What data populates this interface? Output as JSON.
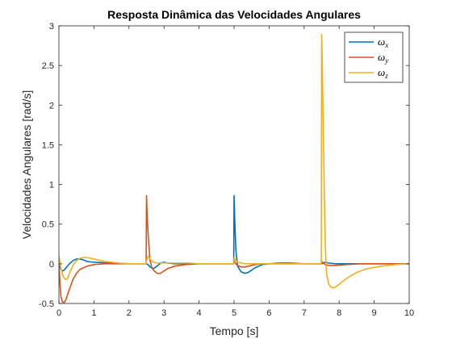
{
  "chart_data": {
    "type": "line",
    "title": "Resposta Dinâmica das Velocidades Angulares",
    "xlabel": "Tempo [s]",
    "ylabel": "Velocidades Angulares [rad/s]",
    "xlim": [
      0,
      10
    ],
    "ylim": [
      -0.5,
      3
    ],
    "xticks": [
      0,
      1,
      2,
      3,
      4,
      5,
      6,
      7,
      8,
      9,
      10
    ],
    "xtick_labels": [
      "0",
      "1",
      "2",
      "3",
      "4",
      "5",
      "6",
      "7",
      "8",
      "9",
      "10"
    ],
    "yticks": [
      -0.5,
      0,
      0.5,
      1,
      1.5,
      2,
      2.5,
      3
    ],
    "ytick_labels": [
      "-0.5",
      "0",
      "0.5",
      "1",
      "1.5",
      "2",
      "2.5",
      "3"
    ],
    "grid": false,
    "legend_position": "top-right",
    "series": [
      {
        "name": "ω",
        "subscript": "x",
        "color": "#0072BD",
        "x": [
          0,
          0.05,
          0.1,
          0.15,
          0.2,
          0.3,
          0.4,
          0.5,
          0.6,
          0.7,
          0.8,
          1.0,
          1.5,
          2.0,
          2.49,
          2.5,
          2.55,
          2.6,
          2.7,
          2.8,
          2.9,
          3.0,
          3.1,
          3.3,
          3.6,
          4.0,
          4.99,
          5.0,
          5.02,
          5.05,
          5.1,
          5.2,
          5.3,
          5.4,
          5.5,
          5.6,
          5.7,
          5.8,
          6.0,
          6.3,
          6.6,
          7.0,
          7.49,
          7.5,
          7.55,
          7.6,
          7.7,
          7.9,
          8.2,
          8.6,
          9.0,
          10.0
        ],
        "y": [
          0.0,
          -0.06,
          -0.09,
          -0.08,
          -0.05,
          0.0,
          0.04,
          0.06,
          0.06,
          0.05,
          0.03,
          0.02,
          0.01,
          0.0,
          0.0,
          0.0,
          -0.01,
          -0.04,
          -0.06,
          -0.03,
          0.01,
          0.02,
          0.01,
          0.0,
          0.0,
          0.0,
          0.0,
          0.86,
          0.55,
          0.18,
          -0.03,
          -0.1,
          -0.12,
          -0.11,
          -0.08,
          -0.05,
          -0.03,
          -0.01,
          0.0,
          0.01,
          0.01,
          0.0,
          0.0,
          0.0,
          0.01,
          0.02,
          0.01,
          0.0,
          0.0,
          0.0,
          0.0,
          0.0
        ]
      },
      {
        "name": "ω",
        "subscript": "y",
        "color": "#D95319",
        "x": [
          0,
          0.03,
          0.06,
          0.1,
          0.15,
          0.2,
          0.3,
          0.4,
          0.5,
          0.6,
          0.8,
          1.0,
          1.3,
          1.6,
          2.0,
          2.49,
          2.5,
          2.52,
          2.55,
          2.6,
          2.65,
          2.7,
          2.8,
          2.9,
          3.0,
          3.1,
          3.3,
          3.6,
          4.0,
          4.99,
          5.0,
          5.05,
          5.1,
          5.2,
          5.3,
          5.4,
          5.6,
          5.8,
          6.1,
          6.5,
          7.0,
          7.49,
          7.5,
          7.55,
          7.6,
          7.7,
          7.9,
          8.2,
          8.6,
          9.0,
          10.0
        ],
        "y": [
          0.0,
          -0.25,
          -0.42,
          -0.48,
          -0.49,
          -0.45,
          -0.32,
          -0.2,
          -0.12,
          -0.07,
          -0.03,
          -0.01,
          0.0,
          0.0,
          0.0,
          0.0,
          0.86,
          0.6,
          0.35,
          0.05,
          -0.05,
          -0.08,
          -0.12,
          -0.12,
          -0.09,
          -0.06,
          -0.03,
          -0.01,
          0.0,
          0.0,
          0.04,
          0.0,
          -0.02,
          -0.04,
          -0.04,
          -0.03,
          -0.01,
          0.0,
          0.0,
          0.0,
          0.0,
          0.0,
          0.03,
          0.01,
          -0.01,
          -0.02,
          -0.02,
          -0.01,
          0.0,
          0.0,
          0.0
        ]
      },
      {
        "name": "ω",
        "subscript": "z",
        "color": "#EDB120",
        "x": [
          0,
          0.05,
          0.1,
          0.15,
          0.2,
          0.25,
          0.3,
          0.4,
          0.5,
          0.6,
          0.7,
          0.8,
          1.0,
          1.3,
          1.7,
          2.0,
          2.49,
          2.5,
          2.55,
          2.6,
          2.7,
          2.8,
          3.0,
          3.3,
          3.7,
          4.0,
          4.99,
          5.0,
          5.05,
          5.1,
          5.2,
          5.3,
          5.5,
          5.7,
          6.0,
          6.5,
          7.0,
          7.49,
          7.5,
          7.52,
          7.55,
          7.58,
          7.6,
          7.63,
          7.65,
          7.7,
          7.75,
          7.8,
          7.85,
          7.9,
          8.0,
          8.1,
          8.3,
          8.5,
          8.8,
          9.2,
          9.6,
          10.0
        ],
        "y": [
          0.1,
          -0.04,
          -0.13,
          -0.18,
          -0.2,
          -0.18,
          -0.12,
          -0.02,
          0.04,
          0.07,
          0.08,
          0.08,
          0.06,
          0.03,
          0.01,
          0.0,
          0.0,
          0.04,
          0.1,
          0.06,
          0.02,
          0.01,
          0.01,
          0.01,
          0.01,
          0.0,
          0.0,
          0.08,
          0.04,
          0.02,
          0.01,
          0.0,
          0.0,
          0.0,
          0.0,
          0.0,
          0.0,
          0.0,
          2.89,
          2.5,
          1.6,
          0.8,
          0.3,
          -0.05,
          -0.15,
          -0.25,
          -0.29,
          -0.3,
          -0.3,
          -0.29,
          -0.26,
          -0.22,
          -0.16,
          -0.11,
          -0.06,
          -0.03,
          -0.01,
          0.0
        ]
      }
    ]
  }
}
